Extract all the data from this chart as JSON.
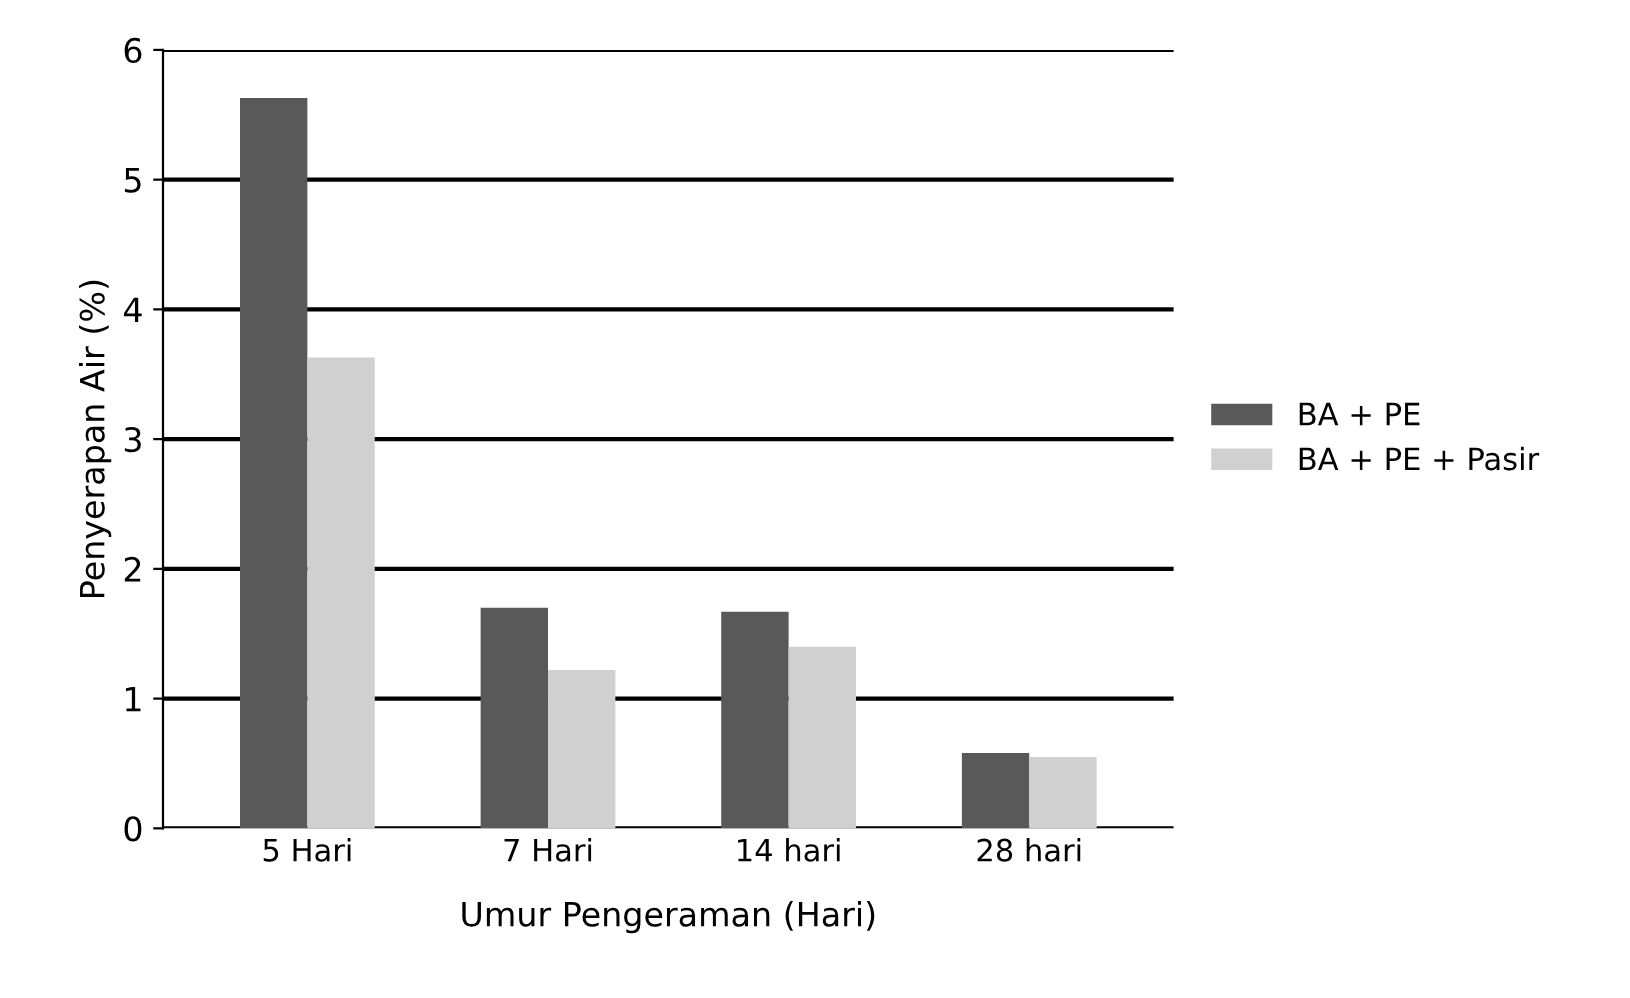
{
  "chart_data": {
    "type": "bar",
    "xlabel": "Umur Pengeraman (Hari)",
    "ylabel": "Penyerapan Air (%)",
    "categories": [
      "5 Hari",
      "7 Hari",
      "14 hari",
      "28 hari"
    ],
    "series": [
      {
        "name": "BA + PE",
        "color": "#595959",
        "values": [
          5.63,
          1.7,
          1.67,
          0.58
        ]
      },
      {
        "name": "BA + PE + Pasir",
        "color": "#d0d0d0",
        "values": [
          3.63,
          1.22,
          1.4,
          0.55
        ]
      }
    ],
    "ylim": [
      0,
      6
    ],
    "yticks": [
      0,
      1,
      2,
      3,
      4,
      5,
      6
    ],
    "grid": "y",
    "legend": "right"
  }
}
